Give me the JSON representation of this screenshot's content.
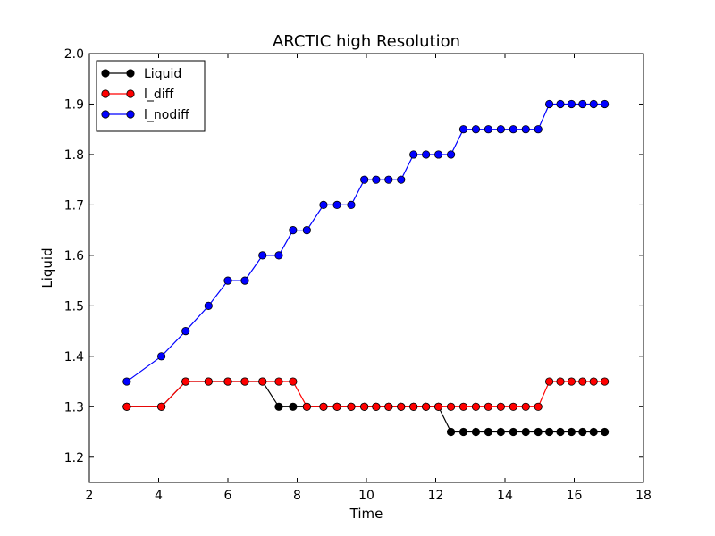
{
  "chart_data": {
    "type": "line",
    "title": "ARCTIC high Resolution",
    "xlabel": "Time",
    "ylabel": "Liquid",
    "xlim": [
      2,
      18
    ],
    "ylim": [
      1.15,
      2.0
    ],
    "xticks": [
      2,
      4,
      6,
      8,
      10,
      12,
      14,
      16,
      18
    ],
    "yticks": [
      1.2,
      1.3,
      1.4,
      1.5,
      1.6,
      1.7,
      1.8,
      1.9,
      2.0
    ],
    "xtick_labels": [
      "2",
      "4",
      "6",
      "8",
      "10",
      "12",
      "14",
      "16",
      "18"
    ],
    "ytick_labels": [
      "1.2",
      "1.3",
      "1.4",
      "1.5",
      "1.6",
      "1.7",
      "1.8",
      "1.9",
      "2.0"
    ],
    "grid": false,
    "legend_position": "top-left",
    "x": [
      3.08,
      4.08,
      4.78,
      5.44,
      6.0,
      6.49,
      7.0,
      7.47,
      7.88,
      8.28,
      8.76,
      9.15,
      9.56,
      9.94,
      10.28,
      10.64,
      11.0,
      11.36,
      11.72,
      12.08,
      12.44,
      12.8,
      13.16,
      13.52,
      13.88,
      14.24,
      14.6,
      14.96,
      15.28,
      15.6,
      15.92,
      16.24,
      16.56,
      16.88
    ],
    "series": [
      {
        "name": "Liquid",
        "color": "#000000",
        "values": [
          1.3,
          1.3,
          1.35,
          1.35,
          1.35,
          1.35,
          1.35,
          1.3,
          1.3,
          1.3,
          1.3,
          1.3,
          1.3,
          1.3,
          1.3,
          1.3,
          1.3,
          1.3,
          1.3,
          1.3,
          1.25,
          1.25,
          1.25,
          1.25,
          1.25,
          1.25,
          1.25,
          1.25,
          1.25,
          1.25,
          1.25,
          1.25,
          1.25,
          1.25
        ]
      },
      {
        "name": "l_diff",
        "color": "#ff0000",
        "values": [
          1.3,
          1.3,
          1.35,
          1.35,
          1.35,
          1.35,
          1.35,
          1.35,
          1.35,
          1.3,
          1.3,
          1.3,
          1.3,
          1.3,
          1.3,
          1.3,
          1.3,
          1.3,
          1.3,
          1.3,
          1.3,
          1.3,
          1.3,
          1.3,
          1.3,
          1.3,
          1.3,
          1.3,
          1.35,
          1.35,
          1.35,
          1.35,
          1.35,
          1.35
        ]
      },
      {
        "name": "l_nodiff",
        "color": "#0000ff",
        "values": [
          1.35,
          1.4,
          1.45,
          1.5,
          1.55,
          1.55,
          1.6,
          1.6,
          1.65,
          1.65,
          1.7,
          1.7,
          1.7,
          1.75,
          1.75,
          1.75,
          1.75,
          1.8,
          1.8,
          1.8,
          1.8,
          1.85,
          1.85,
          1.85,
          1.85,
          1.85,
          1.85,
          1.85,
          1.9,
          1.9,
          1.9,
          1.9,
          1.9,
          1.9
        ]
      }
    ]
  }
}
